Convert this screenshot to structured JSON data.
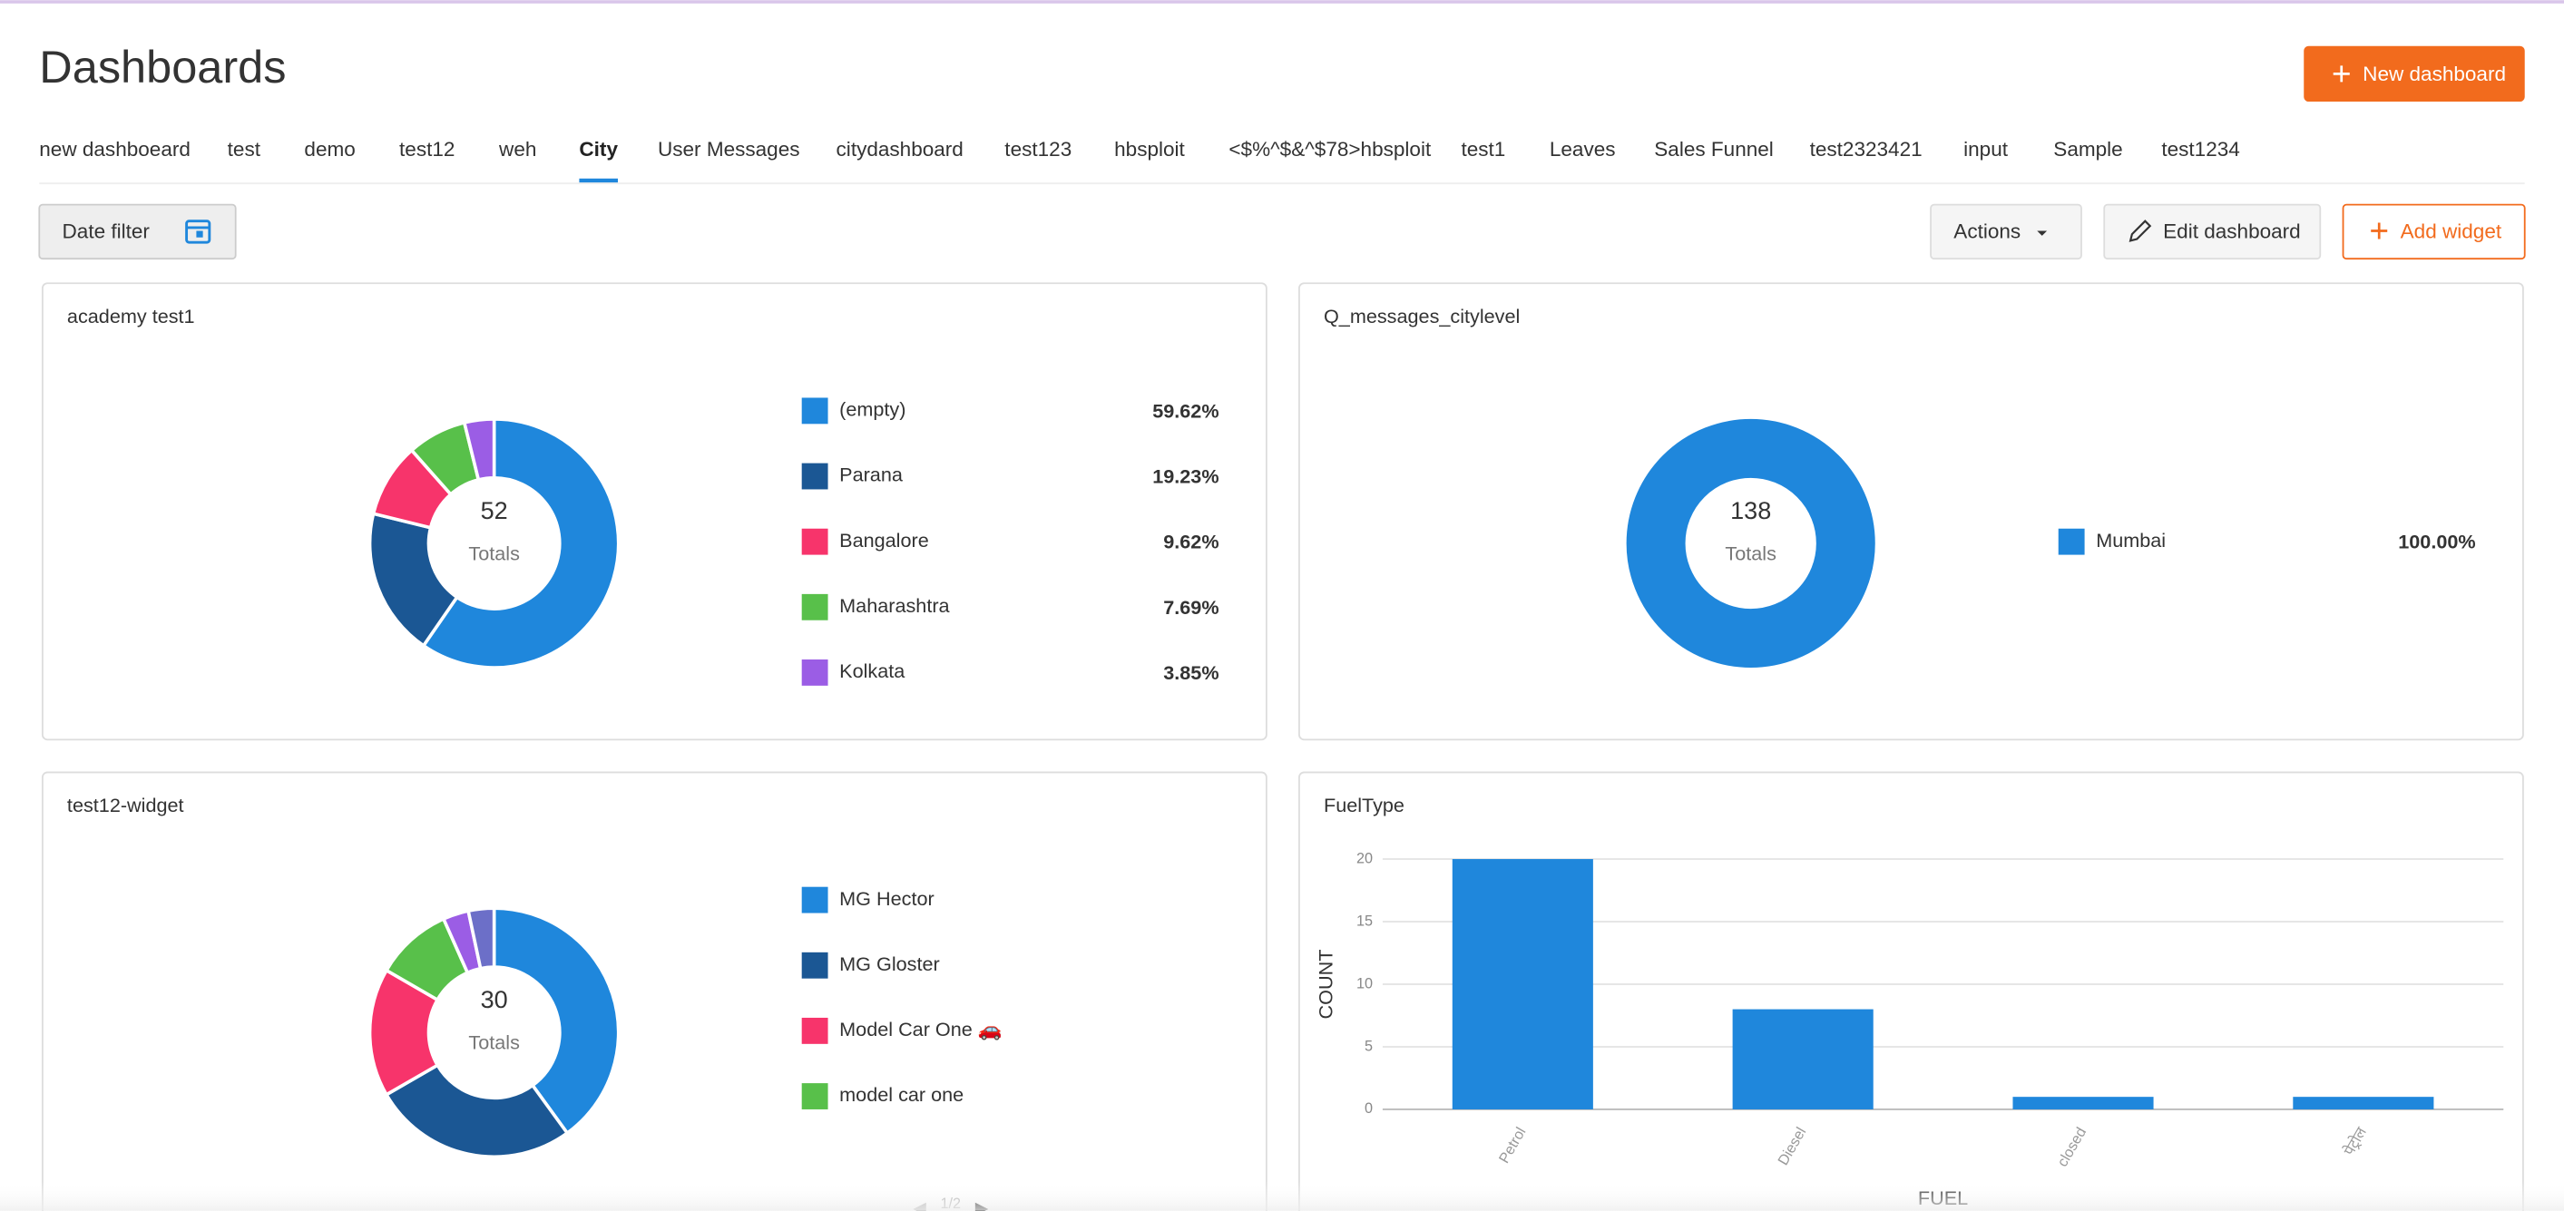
{
  "header": {
    "title": "Dashboards",
    "new_button": "New dashboard"
  },
  "tabs": [
    "new dashboeard",
    "test",
    "demo",
    "test12",
    "weh",
    "City",
    "User Messages",
    "citydashboard",
    "test123",
    "hbsploit",
    "<$%^$&^$78>hbsploit",
    "test1",
    "Leaves",
    "Sales Funnel",
    "test2323421",
    "input",
    "Sample",
    "test1234"
  ],
  "active_tab_index": 5,
  "toolbar": {
    "date_filter": "Date filter",
    "actions": "Actions",
    "edit": "Edit dashboard",
    "add_widget": "Add widget"
  },
  "widgets": [
    {
      "title": "academy test1",
      "chart_data": {
        "type": "donut",
        "total": 52,
        "total_label": "Totals",
        "categories": [
          "(empty)",
          "Parana",
          "Bangalore",
          "Maharashtra",
          "Kolkata"
        ],
        "values": [
          59.62,
          19.23,
          9.62,
          7.69,
          3.85
        ],
        "value_labels": [
          "59.62%",
          "19.23%",
          "9.62%",
          "7.69%",
          "3.85%"
        ],
        "colors": [
          "#1f87dc",
          "#1b5794",
          "#f7346b",
          "#58c04a",
          "#9b5de5"
        ]
      }
    },
    {
      "title": "Q_messages_citylevel",
      "chart_data": {
        "type": "donut",
        "total": 138,
        "total_label": "Totals",
        "categories": [
          "Mumbai"
        ],
        "values": [
          100
        ],
        "value_labels": [
          "100.00%"
        ],
        "colors": [
          "#1f87dc"
        ]
      }
    },
    {
      "title": "test12-widget",
      "chart_data": {
        "type": "donut",
        "total": 30,
        "total_label": "Totals",
        "categories": [
          "MG Hector",
          "MG Gloster",
          "Model Car One 🚗",
          "model car one",
          null,
          null
        ],
        "values": [
          12,
          8,
          5,
          3,
          1,
          1
        ],
        "colors": [
          "#1f87dc",
          "#1b5794",
          "#f7346b",
          "#58c04a",
          "#9b5de5",
          "#6c6fc8"
        ],
        "legend_page": "1/2"
      }
    },
    {
      "title": "FuelType",
      "chart_data": {
        "type": "bar",
        "categories": [
          "Petrol",
          "Diesel",
          "closed",
          "पेट्रोल"
        ],
        "values": [
          20,
          8,
          1,
          1
        ],
        "color": "#1f87dc",
        "ylim": [
          0,
          20
        ],
        "yticks": [
          0,
          5,
          10,
          15,
          20
        ],
        "grid": true,
        "xlabel": "FUEL",
        "ylabel": "COUNT"
      }
    }
  ]
}
